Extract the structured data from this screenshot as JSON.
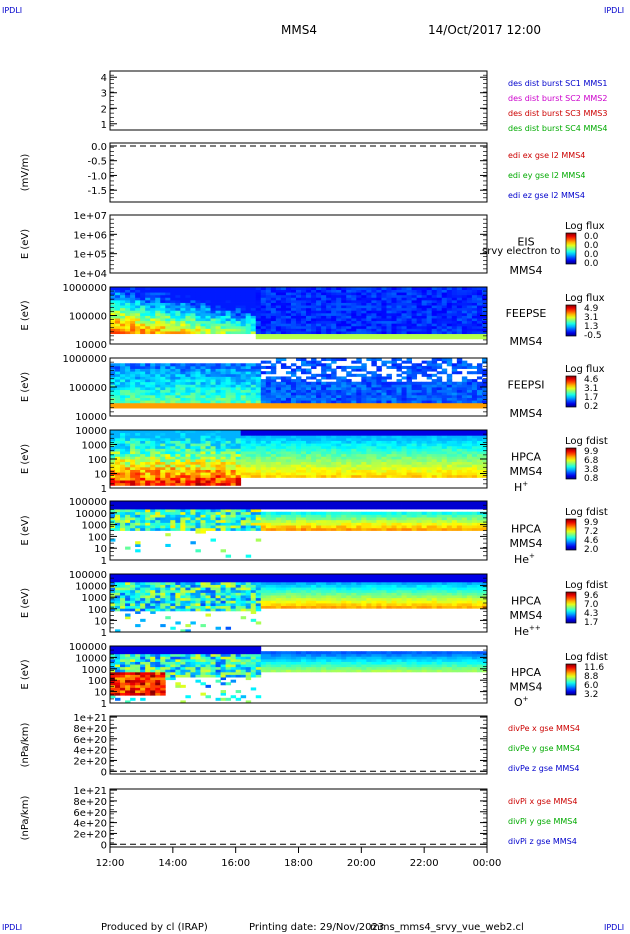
{
  "header": {
    "corner_tl": "IPDLI",
    "corner_tr": "IPDLI",
    "corner_bl": "IPDLI",
    "corner_br": "IPDLI",
    "spacecraft": "MMS4",
    "datetime": "14/Oct/2017 12:00"
  },
  "footer": {
    "produced_by": "Produced by cl (IRAP)",
    "printing_date": "Printing date: 29/Nov/2023",
    "script_name": "mms_mms4_srvy_vue_web2.cl"
  },
  "time_axis": {
    "labels": [
      "12:00",
      "14:00",
      "16:00",
      "18:00",
      "20:00",
      "22:00",
      "00:00"
    ]
  },
  "colors": {
    "mms1": "#0000cc",
    "mms2": "#cc00cc",
    "mms3": "#cc0000",
    "mms4": "#00aa00",
    "x": "#cc0000",
    "y": "#00aa00",
    "z": "#0000cc"
  },
  "chart_data": [
    {
      "id": "burst",
      "type": "line",
      "ylabel": "",
      "yticks": [
        "1",
        "2",
        "3",
        "4"
      ],
      "ylim": [
        0.6,
        4.4
      ],
      "legend": [
        {
          "text": "des dist burst SC1 MMS1",
          "color": "mms1"
        },
        {
          "text": "des dist burst SC2 MMS2",
          "color": "mms2"
        },
        {
          "text": "des dist burst SC3 MMS3",
          "color": "mms3"
        },
        {
          "text": "des dist burst SC4 MMS4",
          "color": "mms4"
        }
      ]
    },
    {
      "id": "edi",
      "type": "line",
      "ylabel": "(mV/m)",
      "yticks": [
        "0.0",
        "-0.5",
        "-1.0",
        "-1.5"
      ],
      "ylim": [
        -1.9,
        0.1
      ],
      "zero_line": 0,
      "legend": [
        {
          "text": "edi ex gse l2 MMS4",
          "color": "x"
        },
        {
          "text": "edi ey gse l2 MMS4",
          "color": "y"
        },
        {
          "text": "edi ez gse l2 MMS4",
          "color": "z"
        }
      ]
    },
    {
      "id": "eis",
      "type": "heatmap",
      "ylabel": "E (eV)",
      "yticks": [
        "1e+07",
        "1e+06",
        "1e+05",
        "1e+04"
      ],
      "instrument": "EIS",
      "overlay": "srvy electron to",
      "sc": "MMS4",
      "cb_title": "Log flux",
      "cb_ticks": [
        "0.0",
        "0.0",
        "0.0",
        "0.0"
      ]
    },
    {
      "id": "feepse",
      "type": "heatmap",
      "ylabel": "E (eV)",
      "yticks": [
        "1000000",
        "100000",
        "10000"
      ],
      "instrument": "FEEPSE",
      "sc": "MMS4",
      "cb_title": "Log flux",
      "cb_ticks": [
        "4.9",
        "3.1",
        "1.3",
        "-0.5"
      ]
    },
    {
      "id": "feepsi",
      "type": "heatmap",
      "ylabel": "E (eV)",
      "yticks": [
        "1000000",
        "100000",
        "10000"
      ],
      "instrument": "FEEPSI",
      "sc": "MMS4",
      "cb_title": "Log flux",
      "cb_ticks": [
        "4.6",
        "3.1",
        "1.7",
        "0.2"
      ]
    },
    {
      "id": "hpca_h",
      "type": "heatmap",
      "ylabel": "E (eV)",
      "yticks": [
        "10000",
        "1000",
        "100",
        "10",
        "1"
      ],
      "instrument": "HPCA",
      "sc": "MMS4",
      "species": "H",
      "species_sup": "+",
      "cb_title": "Log fdist",
      "cb_ticks": [
        "9.9",
        "6.8",
        "3.8",
        "0.8"
      ]
    },
    {
      "id": "hpca_he",
      "type": "heatmap",
      "ylabel": "E (eV)",
      "yticks": [
        "100000",
        "10000",
        "1000",
        "100",
        "10",
        "1"
      ],
      "instrument": "HPCA",
      "sc": "MMS4",
      "species": "He",
      "species_sup": "+",
      "cb_title": "Log fdist",
      "cb_ticks": [
        "9.9",
        "7.2",
        "4.6",
        "2.0"
      ]
    },
    {
      "id": "hpca_hepp",
      "type": "heatmap",
      "ylabel": "E (eV)",
      "yticks": [
        "100000",
        "10000",
        "1000",
        "100",
        "10",
        "1"
      ],
      "instrument": "HPCA",
      "sc": "MMS4",
      "species": "He",
      "species_sup": "++",
      "cb_title": "Log fdist",
      "cb_ticks": [
        "9.6",
        "7.0",
        "4.3",
        "1.7"
      ]
    },
    {
      "id": "hpca_o",
      "type": "heatmap",
      "ylabel": "E (eV)",
      "yticks": [
        "100000",
        "10000",
        "1000",
        "100",
        "10",
        "1"
      ],
      "instrument": "HPCA",
      "sc": "MMS4",
      "species": "O",
      "species_sup": "+",
      "cb_title": "Log fdist",
      "cb_ticks": [
        "11.6",
        "8.8",
        "6.0",
        "3.2"
      ]
    },
    {
      "id": "divpe",
      "type": "line",
      "ylabel": "(nPa/km)",
      "yticks": [
        "1e+21",
        "8e+20",
        "6e+20",
        "4e+20",
        "2e+20",
        "0"
      ],
      "ylim": [
        -5e+19,
        1.02e+21
      ],
      "zero_line": 0,
      "legend": [
        {
          "text": "divPe x gse MMS4",
          "color": "x"
        },
        {
          "text": "divPe y gse MMS4",
          "color": "y"
        },
        {
          "text": "divPe z gse MMS4",
          "color": "z"
        }
      ]
    },
    {
      "id": "divpi",
      "type": "line",
      "ylabel": "(nPa/km)",
      "yticks": [
        "1e+21",
        "8e+20",
        "6e+20",
        "4e+20",
        "2e+20",
        "0"
      ],
      "ylim": [
        -5e+19,
        1.02e+21
      ],
      "zero_line": 0,
      "legend": [
        {
          "text": "divPi x gse MMS4",
          "color": "x"
        },
        {
          "text": "divPi y gse MMS4",
          "color": "y"
        },
        {
          "text": "divPi z gse MMS4",
          "color": "z"
        }
      ]
    }
  ]
}
